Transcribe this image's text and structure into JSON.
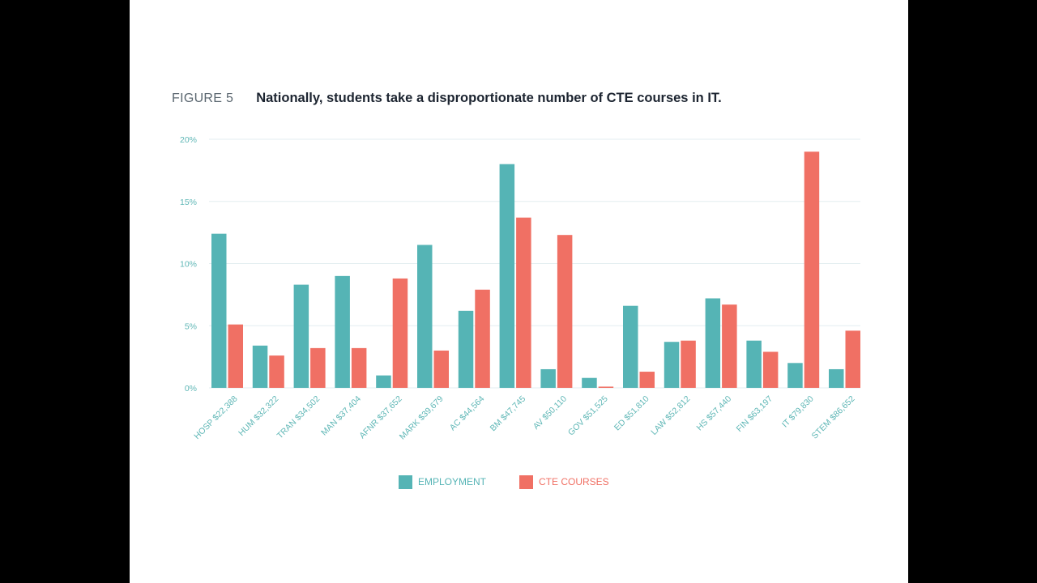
{
  "figure": {
    "label": "FIGURE 5",
    "title": "Nationally, students take a disproportionate number of CTE courses in IT."
  },
  "colors": {
    "employment": "#55b4b5",
    "cte_courses": "#f07064",
    "grid": "#e3eef0",
    "tick_text": "#5fb7b6"
  },
  "chart_data": {
    "type": "bar",
    "categories": [
      "HOSP $22,388",
      "HUM $32,322",
      "TRAN $34,502",
      "MAN $37,404",
      "AFNR $37,652",
      "MARK $39,679",
      "AC $44,564",
      "BM $47,745",
      "AV $50,110",
      "GOV $51,525",
      "ED $51,810",
      "LAW $52,812",
      "HS $57,440",
      "FIN $63,197",
      "IT $79,830",
      "STEM $86,652"
    ],
    "series": [
      {
        "name": "EMPLOYMENT",
        "values": [
          12.4,
          3.4,
          8.3,
          9.0,
          1.0,
          11.5,
          6.2,
          18.0,
          1.5,
          0.8,
          6.6,
          3.7,
          7.2,
          3.8,
          2.0,
          1.5
        ]
      },
      {
        "name": "CTE COURSES",
        "values": [
          5.1,
          2.6,
          3.2,
          3.2,
          8.8,
          3.0,
          7.9,
          13.7,
          12.3,
          0.1,
          1.3,
          3.8,
          6.7,
          2.9,
          19.0,
          4.6
        ]
      }
    ],
    "ylim": [
      0,
      20
    ],
    "yticks": [
      "0%",
      "5%",
      "10%",
      "15%",
      "20%"
    ],
    "ytick_values": [
      0,
      5,
      10,
      15,
      20
    ],
    "grid": true,
    "legend_position": "bottom-center"
  }
}
